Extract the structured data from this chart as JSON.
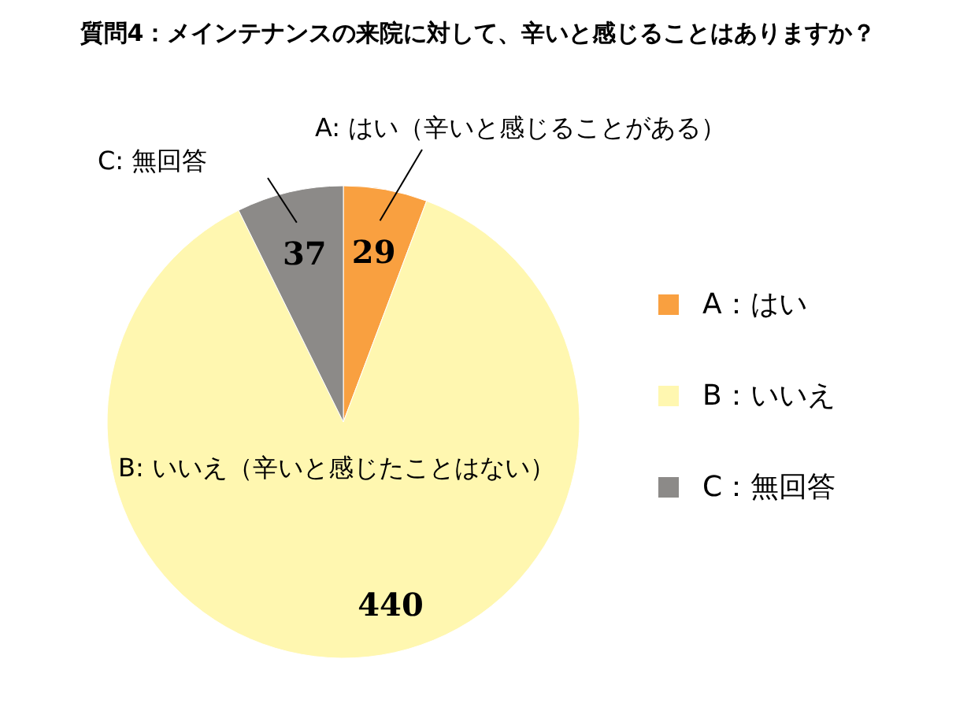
{
  "chart_data": {
    "type": "pie",
    "title": "質問4：メインテナンスの来院に対して、辛いと感じることはありますか？",
    "categories": [
      "A：はい",
      "B：いいえ",
      "C：無回答"
    ],
    "values": [
      29,
      440,
      37
    ],
    "colors": [
      "#f9a040",
      "#fff7b0",
      "#8c8a88"
    ],
    "data_labels": true,
    "legend": "right",
    "annotations": [
      "A: はい（辛いと感じることがある）",
      "B: いいえ（辛いと感じたことはない）",
      "C: 無回答"
    ]
  }
}
